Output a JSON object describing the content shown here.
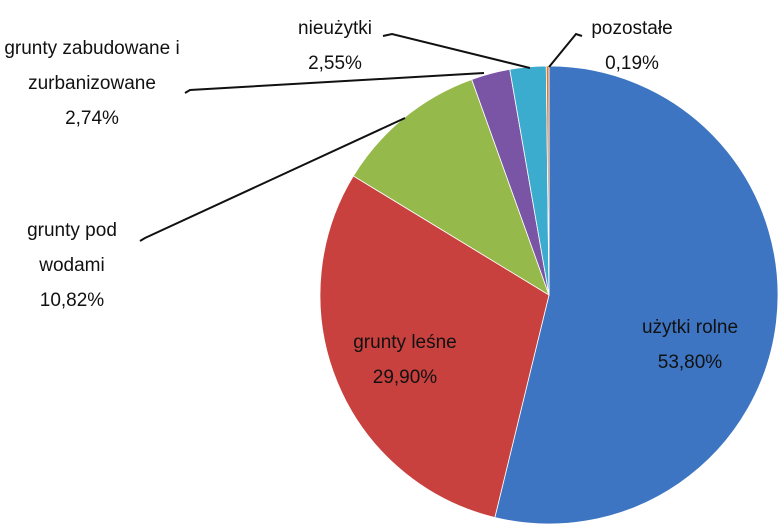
{
  "chart_data": {
    "type": "pie",
    "categories": [
      "użytki rolne",
      "grunty leśne",
      "grunty pod wodami",
      "grunty zabudowane i zurbanizowane",
      "nieużytki",
      "pozostałe"
    ],
    "values": [
      53.8,
      29.9,
      10.82,
      2.74,
      2.55,
      0.19
    ],
    "value_labels": [
      "53,80%",
      "29,90%",
      "10,82%",
      "2,74%",
      "2,55%",
      "0,19%"
    ],
    "colors": [
      "#3d75c2",
      "#c9413e",
      "#96b94c",
      "#7a55a5",
      "#3cacce",
      "#e4772b"
    ]
  }
}
